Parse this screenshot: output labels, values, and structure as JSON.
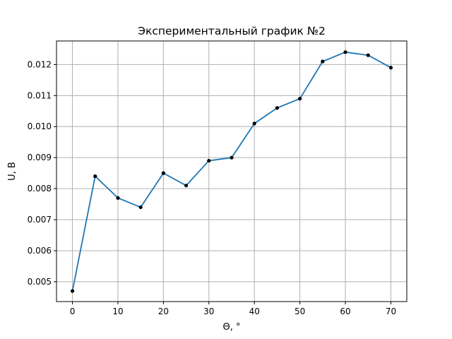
{
  "chart_data": {
    "type": "line",
    "title": "Экспериментальный график №2",
    "xlabel": "Θ, °",
    "ylabel": "U, В",
    "grid": true,
    "xlim": [
      -3.5,
      73.5
    ],
    "ylim": [
      0.00436,
      0.01276
    ],
    "x_ticks": [
      0,
      10,
      20,
      30,
      40,
      50,
      60,
      70
    ],
    "x_tick_labels": [
      "0",
      "10",
      "20",
      "30",
      "40",
      "50",
      "60",
      "70"
    ],
    "y_ticks": [
      0.005,
      0.006,
      0.007,
      0.008,
      0.009,
      0.01,
      0.011,
      0.012
    ],
    "y_tick_labels": [
      "0.005",
      "0.006",
      "0.007",
      "0.008",
      "0.009",
      "0.010",
      "0.011",
      "0.012"
    ],
    "series": [
      {
        "x": [
          0,
          5,
          10,
          15,
          20,
          25,
          30,
          35,
          40,
          45,
          50,
          55,
          60,
          65,
          70
        ],
        "y": [
          0.0047,
          0.0084,
          0.0077,
          0.0074,
          0.0085,
          0.0081,
          0.0089,
          0.009,
          0.0101,
          0.0106,
          0.0109,
          0.0121,
          0.0124,
          0.0123,
          0.0119
        ],
        "line_color": "#1f77b4",
        "marker_color": "#000000"
      }
    ]
  },
  "colors": {
    "grid": "#b0b0b0",
    "axes": "#000000"
  }
}
